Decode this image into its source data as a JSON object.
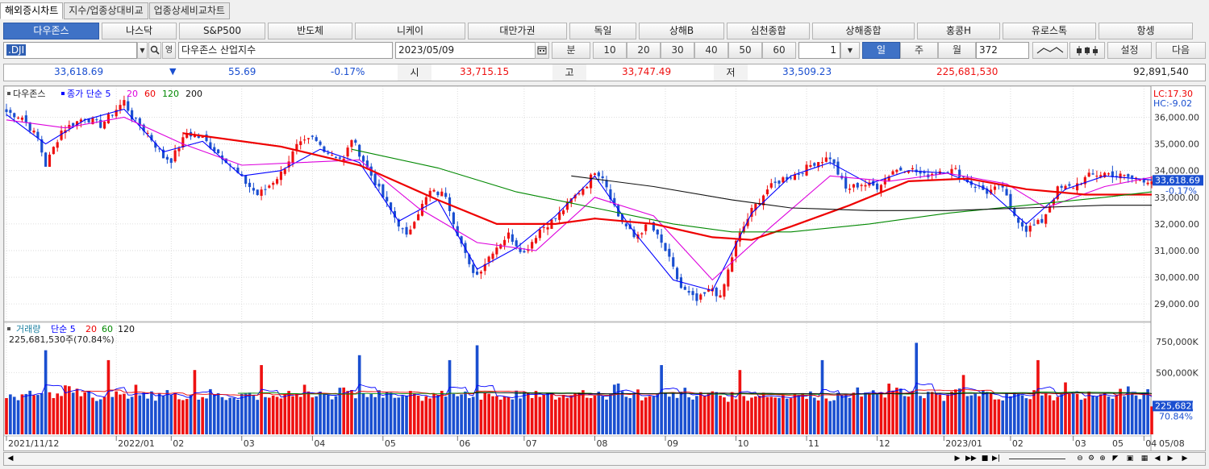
{
  "tabs": [
    "해외증시차트",
    "지수/업종상대비교",
    "업종상세비교차트"
  ],
  "index_buttons": [
    "다우존스",
    "나스닥",
    "S&P500",
    "반도체",
    "니케이",
    "대만가권",
    "독일",
    "상해B",
    "심천종합",
    "상해종합",
    "홍콩H",
    "유로스톡",
    "항셍"
  ],
  "toolbar": {
    "symbol": ".DJI",
    "name": "다우존스 산업지수",
    "date": "2023/05/09",
    "minute_label": "분",
    "minutes": [
      "10",
      "20",
      "30",
      "40",
      "50",
      "60"
    ],
    "unit_value": "1",
    "day_label": "일",
    "week_label": "주",
    "month_label": "월",
    "count": "372",
    "settings_label": "설정",
    "next_label": "다음"
  },
  "quote": {
    "price": "33,618.69",
    "arrow": "▼",
    "change": "55.69",
    "change_pct": "-0.17%",
    "open_label": "시",
    "open": "33,715.15",
    "high_label": "고",
    "high": "33,747.49",
    "low_label": "저",
    "low": "33,509.23",
    "volume": "225,681,530",
    "amount": "92,891,540"
  },
  "chart_data": [
    {
      "type": "candlestick",
      "legend": {
        "name": "다우존스",
        "price": "종가",
        "method": "단순",
        "periods": [
          "5",
          "20",
          "60",
          "120",
          "200"
        ]
      },
      "y_ticks": [
        "36,000.00",
        "35,000.00",
        "34,000.00",
        "33,000.00",
        "32,000.00",
        "31,000.00",
        "30,000.00",
        "29,000.00"
      ],
      "ylim": [
        28400,
        36800
      ],
      "corner_labels": {
        "lc": "LC:17.30",
        "hc": "HC:-9.02"
      },
      "current_price_label": "33,618.69",
      "current_pct_label": "-0.17%",
      "price_path": [
        [
          0,
          36200
        ],
        [
          4,
          36000
        ],
        [
          8,
          35200
        ],
        [
          10,
          34200
        ],
        [
          14,
          35500
        ],
        [
          20,
          36000
        ],
        [
          24,
          35700
        ],
        [
          28,
          36300
        ],
        [
          30,
          36600
        ],
        [
          32,
          36000
        ],
        [
          36,
          35400
        ],
        [
          40,
          34500
        ],
        [
          42,
          34400
        ],
        [
          46,
          35400
        ],
        [
          50,
          35200
        ],
        [
          56,
          34400
        ],
        [
          60,
          33700
        ],
        [
          64,
          33100
        ],
        [
          66,
          33300
        ],
        [
          70,
          33900
        ],
        [
          74,
          34900
        ],
        [
          78,
          35200
        ],
        [
          82,
          34700
        ],
        [
          86,
          34400
        ],
        [
          88,
          35200
        ],
        [
          92,
          34100
        ],
        [
          96,
          33000
        ],
        [
          100,
          32000
        ],
        [
          102,
          31500
        ],
        [
          104,
          32200
        ],
        [
          108,
          33200
        ],
        [
          112,
          33100
        ],
        [
          114,
          32100
        ],
        [
          118,
          30400
        ],
        [
          120,
          30100
        ],
        [
          124,
          31000
        ],
        [
          128,
          31600
        ],
        [
          132,
          30900
        ],
        [
          136,
          31800
        ],
        [
          140,
          32200
        ],
        [
          144,
          32900
        ],
        [
          148,
          33500
        ],
        [
          150,
          34000
        ],
        [
          152,
          33800
        ],
        [
          156,
          32300
        ],
        [
          160,
          31500
        ],
        [
          164,
          32000
        ],
        [
          168,
          31000
        ],
        [
          172,
          29600
        ],
        [
          176,
          29100
        ],
        [
          180,
          29600
        ],
        [
          182,
          29200
        ],
        [
          186,
          31300
        ],
        [
          190,
          32500
        ],
        [
          194,
          33300
        ],
        [
          198,
          33700
        ],
        [
          202,
          33900
        ],
        [
          206,
          34300
        ],
        [
          210,
          34500
        ],
        [
          214,
          33300
        ],
        [
          218,
          33500
        ],
        [
          222,
          33400
        ],
        [
          226,
          34000
        ],
        [
          230,
          34100
        ],
        [
          234,
          33800
        ],
        [
          238,
          34000
        ],
        [
          242,
          34000
        ],
        [
          246,
          33500
        ],
        [
          250,
          33200
        ],
        [
          254,
          33400
        ],
        [
          256,
          32500
        ],
        [
          260,
          31800
        ],
        [
          264,
          32100
        ],
        [
          268,
          33300
        ],
        [
          272,
          33400
        ],
        [
          276,
          33800
        ],
        [
          280,
          33900
        ],
        [
          284,
          33800
        ],
        [
          288,
          33700
        ],
        [
          292,
          33620
        ]
      ],
      "ma_paths": [
        {
          "period": "5",
          "color": "#0000ff",
          "points": [
            [
              0,
              36100
            ],
            [
              10,
              35000
            ],
            [
              20,
              35900
            ],
            [
              30,
              36300
            ],
            [
              40,
              34700
            ],
            [
              50,
              35100
            ],
            [
              60,
              33800
            ],
            [
              70,
              34000
            ],
            [
              80,
              34800
            ],
            [
              90,
              34300
            ],
            [
              100,
              32100
            ],
            [
              110,
              32900
            ],
            [
              120,
              30300
            ],
            [
              130,
              31100
            ],
            [
              140,
              32300
            ],
            [
              150,
              33800
            ],
            [
              160,
              31700
            ],
            [
              170,
              29900
            ],
            [
              180,
              29500
            ],
            [
              190,
              32400
            ],
            [
              200,
              33800
            ],
            [
              210,
              34300
            ],
            [
              220,
              33500
            ],
            [
              230,
              34000
            ],
            [
              240,
              33900
            ],
            [
              250,
              33300
            ],
            [
              260,
              32000
            ],
            [
              270,
              33300
            ],
            [
              280,
              33800
            ],
            [
              292,
              33650
            ]
          ]
        },
        {
          "period": "20",
          "color": "#dd00dd",
          "points": [
            [
              0,
              35900
            ],
            [
              15,
              35600
            ],
            [
              30,
              36000
            ],
            [
              45,
              35000
            ],
            [
              60,
              34200
            ],
            [
              75,
              34300
            ],
            [
              90,
              34400
            ],
            [
              105,
              32600
            ],
            [
              120,
              31300
            ],
            [
              135,
              31000
            ],
            [
              150,
              33000
            ],
            [
              165,
              32300
            ],
            [
              180,
              29900
            ],
            [
              195,
              31900
            ],
            [
              210,
              33800
            ],
            [
              225,
              33600
            ],
            [
              240,
              33900
            ],
            [
              255,
              33500
            ],
            [
              265,
              32600
            ],
            [
              280,
              33400
            ],
            [
              292,
              33750
            ]
          ]
        },
        {
          "period": "60",
          "color": "#ee0000",
          "points": [
            [
              45,
              35400
            ],
            [
              70,
              34900
            ],
            [
              90,
              34200
            ],
            [
              110,
              32900
            ],
            [
              125,
              32000
            ],
            [
              140,
              32000
            ],
            [
              150,
              32200
            ],
            [
              165,
              32000
            ],
            [
              180,
              31500
            ],
            [
              190,
              31400
            ],
            [
              200,
              31900
            ],
            [
              215,
              32700
            ],
            [
              230,
              33600
            ],
            [
              245,
              33700
            ],
            [
              260,
              33300
            ],
            [
              275,
              33100
            ],
            [
              292,
              33100
            ]
          ]
        },
        {
          "period": "120",
          "color": "#008800",
          "points": [
            [
              88,
              34800
            ],
            [
              110,
              34100
            ],
            [
              130,
              33200
            ],
            [
              150,
              32600
            ],
            [
              170,
              32000
            ],
            [
              185,
              31700
            ],
            [
              200,
              31700
            ],
            [
              220,
              32000
            ],
            [
              240,
              32400
            ],
            [
              260,
              32700
            ],
            [
              280,
              33000
            ],
            [
              292,
              33200
            ]
          ]
        },
        {
          "period": "200",
          "color": "#111111",
          "points": [
            [
              144,
              33800
            ],
            [
              165,
              33400
            ],
            [
              185,
              32900
            ],
            [
              200,
              32600
            ],
            [
              220,
              32500
            ],
            [
              240,
              32500
            ],
            [
              260,
              32600
            ],
            [
              280,
              32700
            ],
            [
              292,
              32700
            ]
          ]
        }
      ]
    },
    {
      "type": "bar",
      "legend": {
        "name": "거래량",
        "method": "단순",
        "periods": [
          "5",
          "20",
          "60",
          "120"
        ]
      },
      "value_label": "225,681,530주(70.84%)",
      "y_ticks": [
        "750,000K",
        "500,000K"
      ],
      "ylim": [
        0,
        860000
      ],
      "current_label": "225,682K",
      "current_pct_label": "70.84%",
      "base_volume": [
        290,
        300,
        310,
        280,
        330,
        320,
        360,
        340,
        300,
        310,
        330,
        350,
        320,
        300,
        290,
        380,
        370,
        340,
        330,
        310,
        320,
        350,
        300,
        290,
        280,
        330,
        310,
        300,
        320,
        290,
        300,
        310,
        330,
        360,
        320,
        300,
        290,
        310,
        300,
        330,
        320,
        340,
        310,
        300,
        290,
        300,
        310,
        320,
        300,
        290,
        310,
        300,
        330,
        320,
        310,
        300,
        290,
        300,
        310,
        300,
        320,
        310,
        330,
        300,
        290,
        310,
        320,
        300,
        310,
        300
      ],
      "spikes": [
        [
          10,
          680
        ],
        [
          26,
          600
        ],
        [
          48,
          520
        ],
        [
          65,
          560
        ],
        [
          90,
          640
        ],
        [
          113,
          600
        ],
        [
          120,
          720
        ],
        [
          167,
          560
        ],
        [
          187,
          520
        ],
        [
          208,
          600
        ],
        [
          232,
          740
        ],
        [
          244,
          480
        ],
        [
          263,
          600
        ],
        [
          270,
          420
        ],
        [
          292,
          226
        ]
      ]
    }
  ],
  "x_ticks": [
    {
      "i": 0,
      "label": "2021/11/12"
    },
    {
      "i": 28,
      "label": "2022/01"
    },
    {
      "i": 42,
      "label": "02"
    },
    {
      "i": 60,
      "label": "03"
    },
    {
      "i": 78,
      "label": "04"
    },
    {
      "i": 96,
      "label": "05"
    },
    {
      "i": 115,
      "label": "06"
    },
    {
      "i": 132,
      "label": "07"
    },
    {
      "i": 150,
      "label": "08"
    },
    {
      "i": 168,
      "label": "09"
    },
    {
      "i": 186,
      "label": "10"
    },
    {
      "i": 204,
      "label": "11"
    },
    {
      "i": 222,
      "label": "12"
    },
    {
      "i": 239,
      "label": "2023/01"
    },
    {
      "i": 256,
      "label": "02"
    },
    {
      "i": 272,
      "label": "03"
    },
    {
      "i": 290,
      "label": "04"
    }
  ],
  "x_ticks_extra": [
    {
      "label": "05"
    }
  ],
  "axis_end_label": "05/08",
  "colors": {
    "up": "#ee1111",
    "down": "#1a4fd0",
    "grid": "#d4d4d4"
  }
}
